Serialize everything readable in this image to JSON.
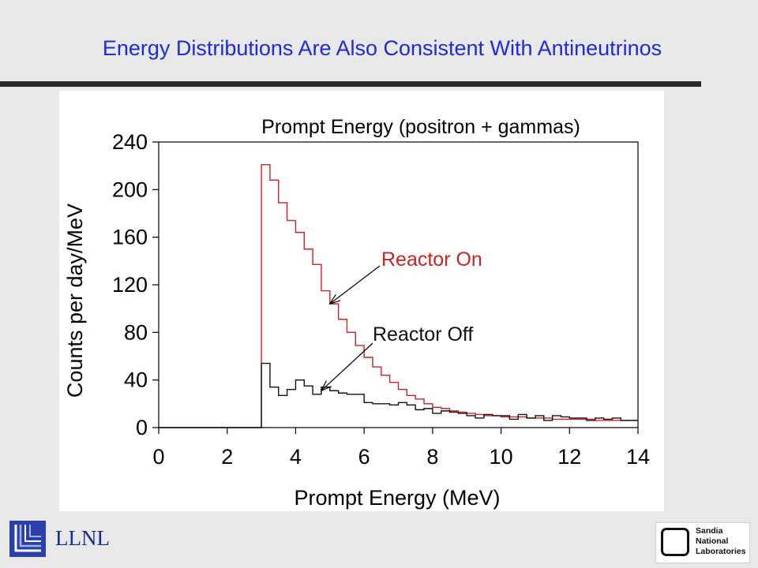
{
  "slide": {
    "title": "Energy Distributions Are Also Consistent With Antineutrinos",
    "footer_left": "LLNL",
    "footer_right_lines": [
      "Sandia",
      "National",
      "Laboratories"
    ]
  },
  "colors": {
    "title": "#1f2bd8",
    "reactor_on": "#cc2222",
    "reactor_off": "#111111",
    "rule": "#2b2b2b",
    "background": "#e8e8e8"
  },
  "icons": {
    "left_logo": "llnl-logo-icon",
    "right_logo": "sandia-logo-icon"
  },
  "chart_data": {
    "type": "line",
    "step": true,
    "title": "Prompt Energy (positron + gammas)",
    "xlabel": "Prompt Energy (MeV)",
    "ylabel": "Counts per day/MeV",
    "xlim": [
      0,
      14
    ],
    "ylim": [
      0,
      240
    ],
    "xticks": [
      0,
      2,
      4,
      6,
      8,
      10,
      12,
      14
    ],
    "yticks": [
      0,
      40,
      80,
      120,
      160,
      200,
      240
    ],
    "grid": false,
    "legend": "annotations",
    "bin_width": 0.25,
    "series": [
      {
        "name": "Reactor On",
        "color": "#cc2222",
        "x": [
          0.0,
          0.25,
          0.5,
          0.75,
          1.0,
          1.25,
          1.5,
          1.75,
          2.0,
          2.25,
          2.5,
          2.75,
          3.0,
          3.25,
          3.5,
          3.75,
          4.0,
          4.25,
          4.5,
          4.75,
          5.0,
          5.25,
          5.5,
          5.75,
          6.0,
          6.25,
          6.5,
          6.75,
          7.0,
          7.25,
          7.5,
          7.75,
          8.0,
          8.25,
          8.5,
          8.75,
          9.0,
          9.25,
          9.5,
          9.75,
          10.0,
          10.25,
          10.5,
          10.75,
          11.0,
          11.25,
          11.5,
          11.75,
          12.0,
          12.25,
          12.5,
          12.75,
          13.0,
          13.25,
          13.5,
          13.75
        ],
        "values": [
          0,
          0,
          0,
          0,
          0,
          0,
          0,
          0,
          0,
          0,
          0,
          0,
          221,
          208,
          189,
          174,
          164,
          150,
          137,
          115,
          104,
          91,
          80,
          69,
          59,
          51,
          44,
          38,
          32,
          27,
          24,
          20,
          17,
          16,
          14,
          13,
          12,
          11,
          10,
          10,
          9,
          9,
          9,
          8,
          8,
          8,
          7,
          7,
          7,
          7,
          7,
          6,
          6,
          6,
          6,
          6
        ]
      },
      {
        "name": "Reactor Off",
        "color": "#111111",
        "x": [
          0.0,
          0.25,
          0.5,
          0.75,
          1.0,
          1.25,
          1.5,
          1.75,
          2.0,
          2.25,
          2.5,
          2.75,
          3.0,
          3.25,
          3.5,
          3.75,
          4.0,
          4.25,
          4.5,
          4.75,
          5.0,
          5.25,
          5.5,
          5.75,
          6.0,
          6.25,
          6.5,
          6.75,
          7.0,
          7.25,
          7.5,
          7.75,
          8.0,
          8.25,
          8.5,
          8.75,
          9.0,
          9.25,
          9.5,
          9.75,
          10.0,
          10.25,
          10.5,
          10.75,
          11.0,
          11.25,
          11.5,
          11.75,
          12.0,
          12.25,
          12.5,
          12.75,
          13.0,
          13.25,
          13.5,
          13.75
        ],
        "values": [
          0,
          0,
          0,
          0,
          0,
          0,
          0,
          0,
          0,
          0,
          0,
          0,
          54,
          34,
          27,
          32,
          40,
          35,
          28,
          34,
          31,
          29,
          28,
          28,
          21,
          20,
          20,
          19,
          21,
          19,
          15,
          16,
          12,
          14,
          13,
          12,
          10,
          8,
          11,
          10,
          10,
          7,
          11,
          8,
          10,
          6,
          10,
          9,
          8,
          8,
          6,
          8,
          7,
          8,
          6,
          6
        ]
      }
    ],
    "annotations": [
      {
        "text": "Reactor On",
        "series": "Reactor On",
        "point_x": 5.0,
        "point_y": 104
      },
      {
        "text": "Reactor Off",
        "series": "Reactor Off",
        "point_x": 4.75,
        "point_y": 31
      }
    ]
  }
}
